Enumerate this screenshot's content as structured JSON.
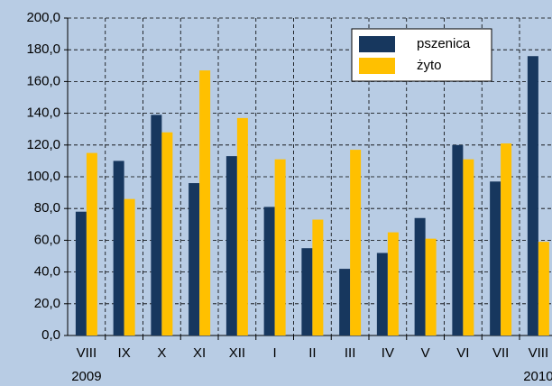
{
  "chart_data": {
    "type": "bar",
    "categories": [
      "VIII",
      "IX",
      "X",
      "XI",
      "XII",
      "I",
      "II",
      "III",
      "IV",
      "V",
      "VI",
      "VII",
      "VIII"
    ],
    "series": [
      {
        "name": "pszenica",
        "color": "#17375e",
        "values": [
          78,
          110,
          139,
          96,
          113,
          81,
          55,
          42,
          52,
          74,
          120,
          97,
          176
        ]
      },
      {
        "name": "żyto",
        "color": "#ffc000",
        "values": [
          115,
          86,
          128,
          167,
          137,
          111,
          73,
          117,
          65,
          61,
          111,
          121,
          59
        ]
      }
    ],
    "annotations": [
      "2009",
      "2010"
    ],
    "ylim": [
      0,
      200
    ],
    "yticks": [
      {
        "value": 0,
        "label": "0,0"
      },
      {
        "value": 20,
        "label": "20,0"
      },
      {
        "value": 40,
        "label": "40,0"
      },
      {
        "value": 60,
        "label": "60,0"
      },
      {
        "value": 80,
        "label": "80,0"
      },
      {
        "value": 100,
        "label": "100,0"
      },
      {
        "value": 120,
        "label": "120,0"
      },
      {
        "value": 140,
        "label": "140,0"
      },
      {
        "value": 160,
        "label": "160,0"
      },
      {
        "value": 180,
        "label": "180,0"
      },
      {
        "value": 200,
        "label": "200,0"
      }
    ],
    "grid": true,
    "legend": "top-right"
  }
}
